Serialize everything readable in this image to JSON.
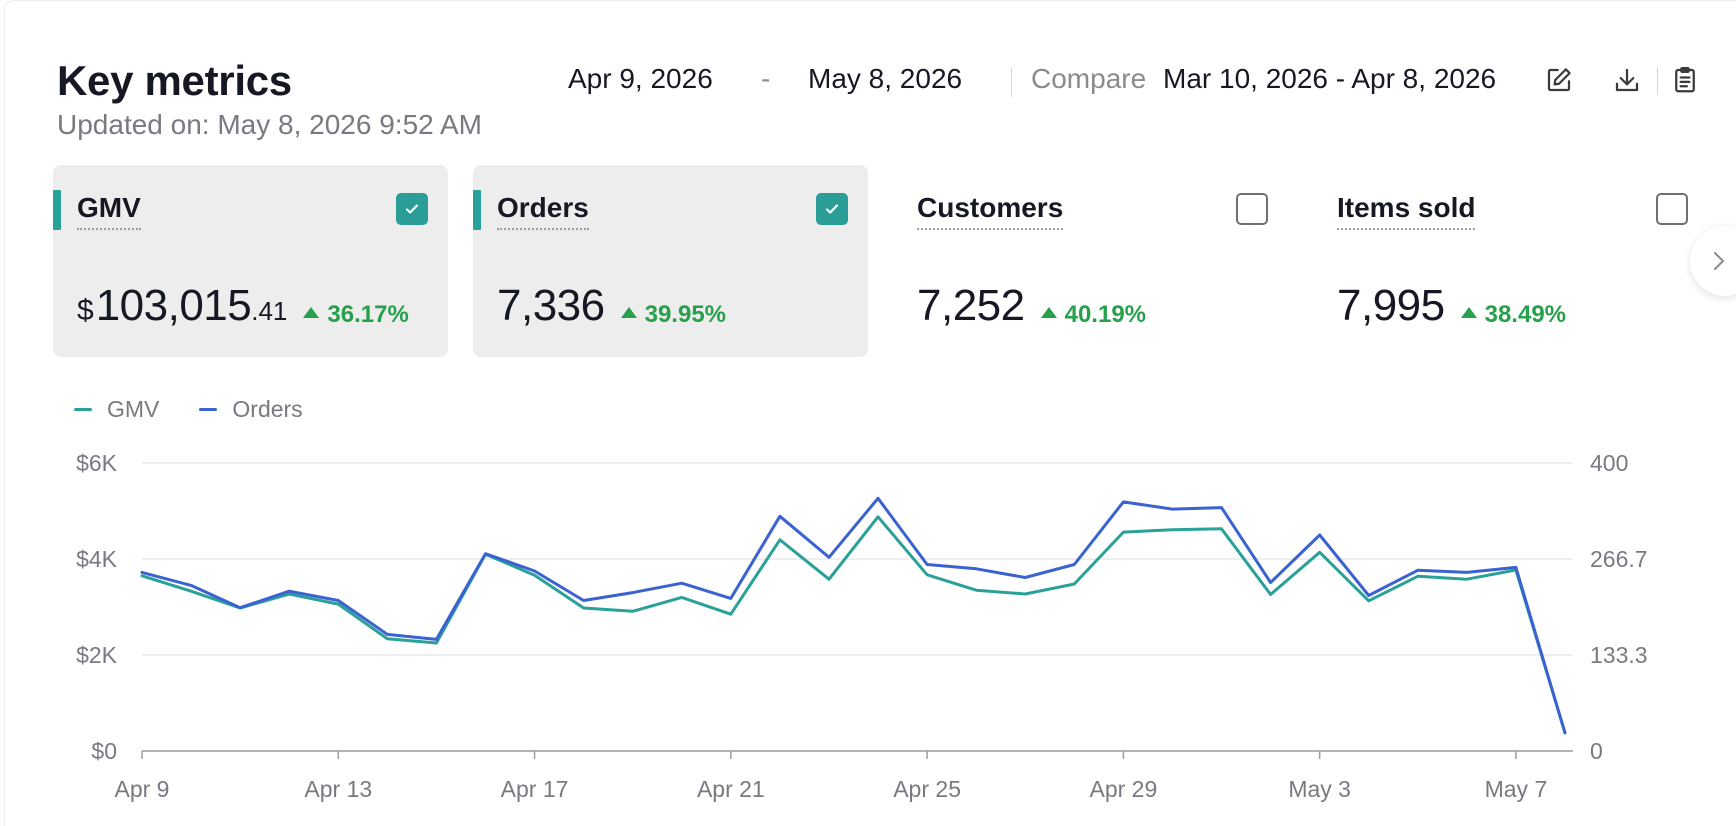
{
  "header": {
    "title": "Key metrics",
    "updated": "Updated on: May 8, 2026 9:52 AM",
    "date_start": "Apr 9, 2026",
    "date_separator": "-",
    "date_end": "May 8, 2026",
    "compare_label": "Compare",
    "compare_range": "Mar 10, 2026 - Apr 8, 2026"
  },
  "toolbar_icons": [
    "edit-icon",
    "download-icon",
    "clipboard-icon"
  ],
  "cards": [
    {
      "label": "GMV",
      "currency": "$",
      "value": "103,015",
      "cents": ".41",
      "change": "36.17%",
      "selected": true
    },
    {
      "label": "Orders",
      "value": "7,336",
      "change": "39.95%",
      "selected": true
    },
    {
      "label": "Customers",
      "value": "7,252",
      "change": "40.19%",
      "selected": false
    },
    {
      "label": "Items sold",
      "value": "7,995",
      "change": "38.49%",
      "selected": false
    }
  ],
  "colors": {
    "gmv": "#2aa198",
    "orders": "#3a62d0",
    "positive": "#26a04a",
    "selected_card": "#ededed"
  },
  "chart_data": {
    "type": "line",
    "x": [
      "Apr 9",
      "Apr 10",
      "Apr 11",
      "Apr 12",
      "Apr 13",
      "Apr 14",
      "Apr 15",
      "Apr 16",
      "Apr 17",
      "Apr 18",
      "Apr 19",
      "Apr 20",
      "Apr 21",
      "Apr 22",
      "Apr 23",
      "Apr 24",
      "Apr 25",
      "Apr 26",
      "Apr 27",
      "Apr 28",
      "Apr 29",
      "Apr 30",
      "May 1",
      "May 2",
      "May 3",
      "May 4",
      "May 5",
      "May 6",
      "May 7",
      "May 8"
    ],
    "x_tick_labels": [
      "Apr 9",
      "Apr 13",
      "Apr 17",
      "Apr 21",
      "Apr 25",
      "Apr 29",
      "May 3",
      "May 7"
    ],
    "series": [
      {
        "name": "GMV",
        "axis": "left",
        "values": [
          3650,
          3330,
          2980,
          3270,
          3060,
          2340,
          2250,
          4100,
          3660,
          2980,
          2910,
          3200,
          2850,
          4400,
          3580,
          4880,
          3670,
          3350,
          3270,
          3480,
          4560,
          4610,
          4630,
          3260,
          4140,
          3130,
          3640,
          3580,
          3770,
          380
        ]
      },
      {
        "name": "Orders",
        "axis": "right",
        "values": [
          248,
          230,
          199,
          222,
          209,
          162,
          155,
          274,
          250,
          209,
          220,
          233,
          212,
          326,
          269,
          351,
          259,
          253,
          241,
          259,
          346,
          336,
          338,
          234,
          300,
          216,
          251,
          248,
          255,
          25
        ]
      }
    ],
    "y_left": {
      "ticks": [
        "$0",
        "$2K",
        "$4K",
        "$6K"
      ],
      "min": 0,
      "max": 6000
    },
    "y_right": {
      "ticks": [
        "0",
        "133.3",
        "266.7",
        "400"
      ],
      "min": 0,
      "max": 400
    },
    "legend": [
      "GMV",
      "Orders"
    ],
    "legend_position": "top-left",
    "grid": true
  }
}
